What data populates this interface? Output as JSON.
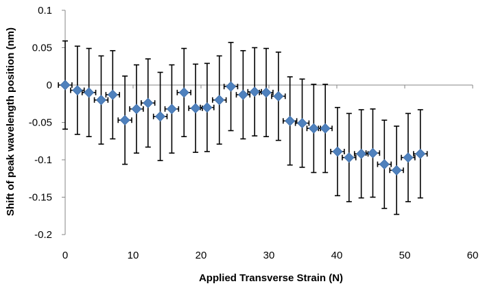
{
  "chart_data": {
    "type": "scatter",
    "title": "",
    "xlabel": "Applied Transverse Strain (N)",
    "ylabel": "Shift of peak wavelength position (nm)",
    "xlim": [
      0,
      60
    ],
    "ylim": [
      -0.2,
      0.1
    ],
    "x_ticks": [
      "0",
      "10",
      "20",
      "30",
      "40",
      "50",
      "60"
    ],
    "y_ticks": [
      "0.1",
      "0.05",
      "0",
      "-0.05",
      "-0.1",
      "-0.15",
      "-0.2"
    ],
    "grid": false,
    "legend": "none",
    "marker": "diamond",
    "marker_color": "#4F81BD",
    "error_bar_color": "#000000",
    "x_error": 1.0,
    "y_error": 0.059,
    "series": [
      {
        "x": [
          0,
          1.8,
          3.5,
          5.3,
          7.0,
          8.8,
          10.5,
          12.2,
          14.0,
          15.7,
          17.5,
          19.2,
          20.9,
          22.7,
          24.4,
          26.2,
          27.9,
          29.6,
          31.4,
          33.1,
          34.9,
          36.6,
          38.3,
          40.1,
          41.8,
          43.6,
          45.3,
          47.0,
          48.8,
          50.5,
          52.3
        ],
        "y": [
          0.0,
          -0.007,
          -0.01,
          -0.02,
          -0.013,
          -0.047,
          -0.032,
          -0.024,
          -0.042,
          -0.032,
          -0.01,
          -0.031,
          -0.03,
          -0.02,
          -0.002,
          -0.013,
          -0.009,
          -0.01,
          -0.015,
          -0.048,
          -0.051,
          -0.058,
          -0.058,
          -0.089,
          -0.097,
          -0.092,
          -0.091,
          -0.106,
          -0.114,
          -0.097,
          -0.092
        ]
      }
    ]
  }
}
